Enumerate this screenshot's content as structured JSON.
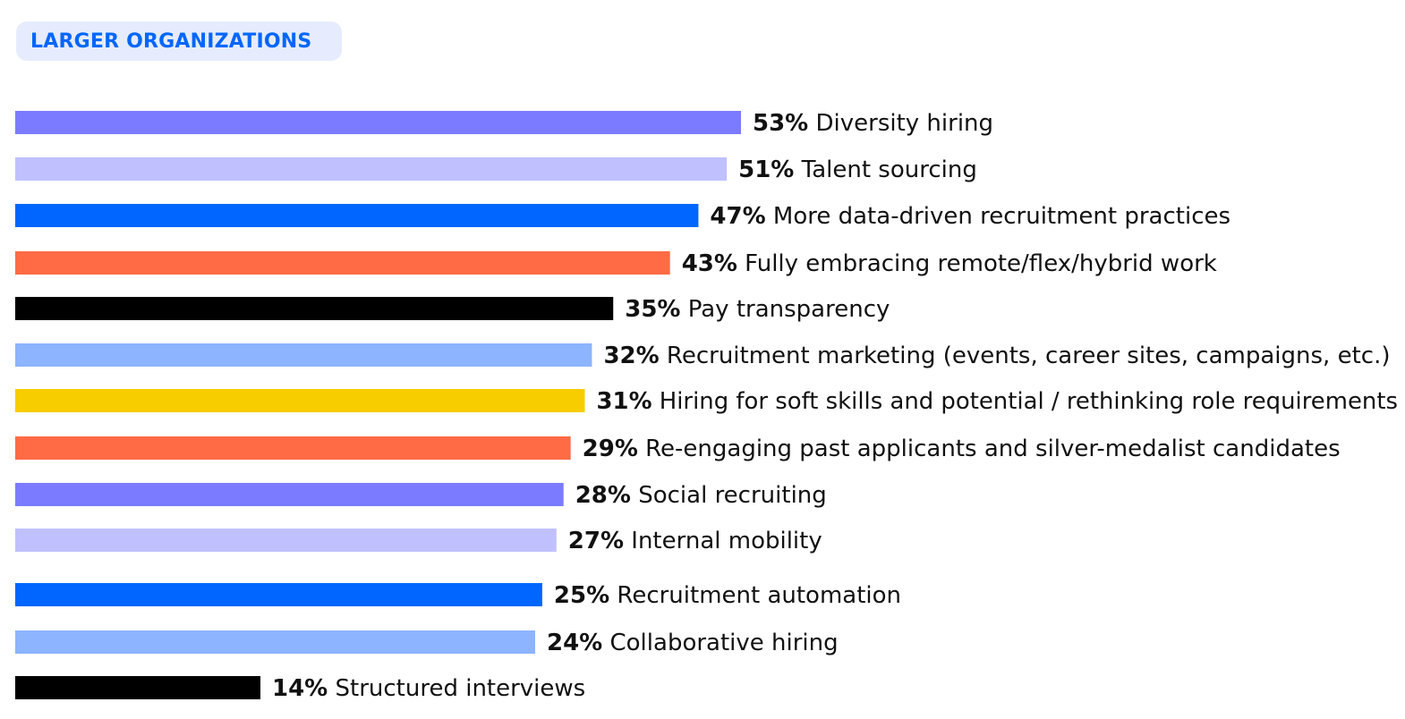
{
  "badge": {
    "label": "LARGER ORGANIZATIONS",
    "background": "#e6ecfd",
    "color": "#0066ff"
  },
  "chart_data": {
    "type": "bar",
    "orientation": "horizontal",
    "title": "",
    "xlabel": "",
    "ylabel": "",
    "grid": false,
    "categories": [
      "Diversity hiring",
      "Talent sourcing",
      "More data-driven recruitment practices",
      "Fully embracing remote/flex/hybrid work",
      "Pay transparency",
      "Recruitment marketing (events, career sites, campaigns, etc.)",
      "Hiring for soft skills and potential / rethinking role requirements",
      "Re-engaging past applicants and silver-medalist candidates",
      "Social recruiting",
      "Internal mobility",
      "Recruitment automation",
      "Collaborative hiring",
      "Structured interviews"
    ],
    "values": [
      53,
      51,
      47,
      43,
      35,
      32,
      31,
      29,
      28,
      27,
      25,
      24,
      14
    ],
    "value_labels": [
      "53%",
      "51%",
      "47%",
      "43%",
      "35%",
      "32%",
      "31%",
      "29%",
      "28%",
      "27%",
      "25%",
      "24%",
      "14%"
    ],
    "colors": [
      "#7b7bff",
      "#c0c0ff",
      "#0066ff",
      "#ff6b45",
      "#000000",
      "#8cb4ff",
      "#f7cd00",
      "#ff6b45",
      "#7b7bff",
      "#c0c0ff",
      "#0066ff",
      "#8cb4ff",
      "#000000"
    ]
  }
}
